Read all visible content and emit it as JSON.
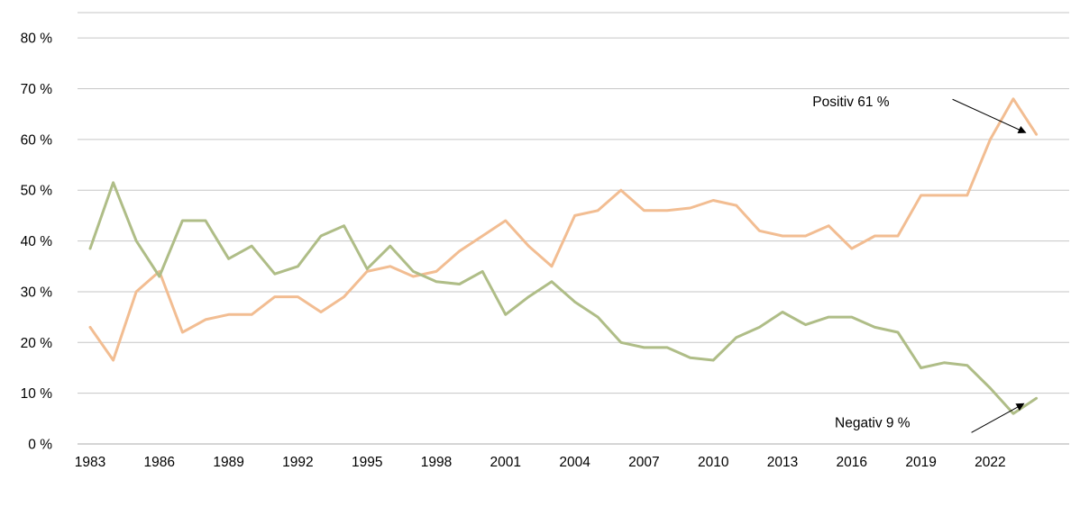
{
  "chart_data": {
    "type": "line",
    "x": [
      1983,
      1984,
      1985,
      1986,
      1987,
      1988,
      1989,
      1990,
      1991,
      1992,
      1993,
      1994,
      1995,
      1996,
      1997,
      1998,
      1999,
      2000,
      2001,
      2002,
      2003,
      2004,
      2005,
      2006,
      2007,
      2008,
      2009,
      2010,
      2011,
      2012,
      2013,
      2014,
      2015,
      2016,
      2017,
      2018,
      2019,
      2020,
      2021,
      2022,
      2023,
      2024
    ],
    "series": [
      {
        "name": "Positiv",
        "color": "#f2bd92",
        "values": [
          23,
          16.5,
          30,
          34,
          22,
          24.5,
          25.5,
          25.5,
          29,
          29,
          26,
          29,
          34,
          35,
          33,
          34,
          38,
          41,
          44,
          39,
          35,
          45,
          46,
          50,
          46,
          46,
          46.5,
          48,
          47,
          42,
          41,
          41,
          43,
          38.5,
          41,
          41,
          49,
          49,
          49,
          60,
          68,
          61
        ]
      },
      {
        "name": "Negativ",
        "color": "#afbd87",
        "values": [
          38.5,
          51.5,
          40,
          33,
          44,
          44,
          36.5,
          39,
          33.5,
          35,
          41,
          43,
          34.5,
          39,
          34,
          32,
          31.5,
          34,
          25.5,
          29,
          32,
          28,
          25,
          20,
          19,
          19,
          17,
          16.5,
          21,
          23,
          26,
          23.5,
          25,
          25,
          23,
          22,
          15,
          16,
          15.5,
          11,
          6,
          9
        ]
      }
    ],
    "title": "",
    "xlabel": "",
    "ylabel": "",
    "ylim": [
      0,
      85
    ],
    "yticks": [
      0,
      10,
      20,
      30,
      40,
      50,
      60,
      70,
      80
    ],
    "ytick_suffix": " %",
    "xticks": [
      1983,
      1986,
      1989,
      1992,
      1995,
      1998,
      2001,
      2004,
      2007,
      2010,
      2013,
      2016,
      2019,
      2022
    ],
    "grid": true,
    "legend": "none",
    "gridline_color": "#c6c6c6",
    "axis_line_color": "#ababab",
    "text_color": "#000000",
    "annotation_color": "#000000",
    "annotations": [
      {
        "text": "Positiv 61 %",
        "target_x": 2024,
        "target_y": 61,
        "text_dx": -163,
        "text_dy": -31,
        "arrow_start_dx": -93,
        "arrow_start_dy": -39,
        "arrow_end_dx": -12,
        "arrow_end_dy": -2
      },
      {
        "text": "Negativ 9 %",
        "target_x": 2024,
        "target_y": 9,
        "text_dx": -140,
        "text_dy": 32,
        "arrow_start_dx": -72,
        "arrow_start_dy": 38,
        "arrow_end_dx": -14,
        "arrow_end_dy": 6
      }
    ]
  }
}
